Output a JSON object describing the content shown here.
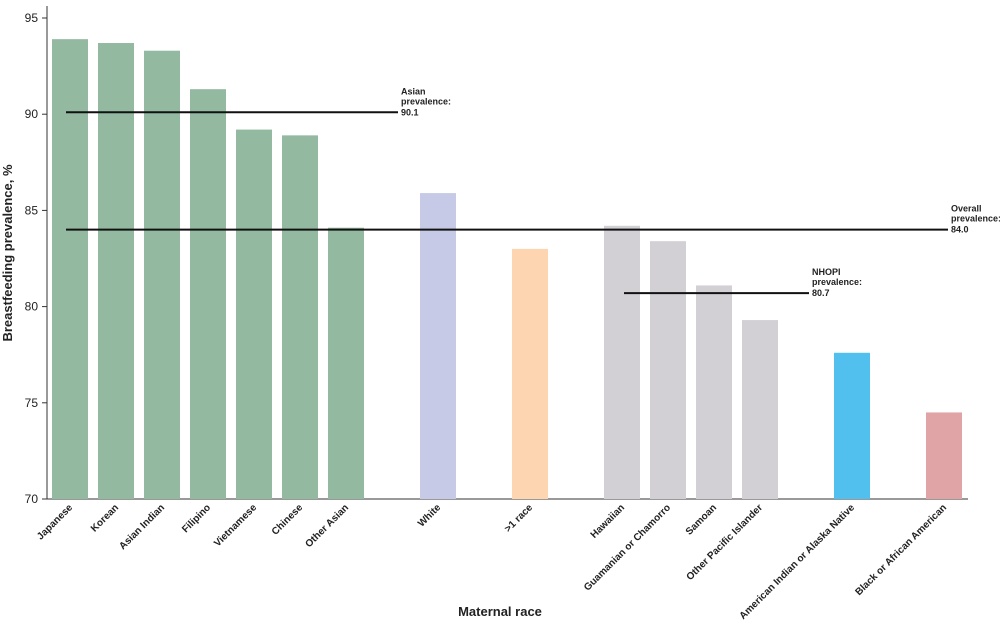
{
  "chart_data": {
    "type": "bar",
    "x_label": "Maternal race",
    "y_label": "Breastfeeding prevalence, %",
    "categories": [
      "Japanese",
      "Korean",
      "Asian Indian",
      "Filipino",
      "Vietnamese",
      "Chinese",
      "Other Asian",
      null,
      "White",
      null,
      ">1 race",
      null,
      "Hawaiian",
      "Guamanian or Chamorro",
      "Samoan",
      "Other Pacific Islander",
      null,
      "American Indian or Alaska Native",
      null,
      "Black or African American"
    ],
    "values": [
      93.9,
      93.7,
      93.3,
      91.3,
      89.2,
      88.9,
      84.1,
      null,
      85.9,
      null,
      83.0,
      null,
      84.2,
      83.4,
      81.1,
      79.3,
      null,
      77.6,
      null,
      74.5
    ],
    "colors": [
      "#93b9a1",
      "#93b9a1",
      "#93b9a1",
      "#93b9a1",
      "#93b9a1",
      "#93b9a1",
      "#93b9a1",
      null,
      "#c6cae7",
      null,
      "#fdd5b0",
      null,
      "#d2d0d5",
      "#d2d0d5",
      "#d2d0d5",
      "#d2d0d5",
      null,
      "#52c0ee",
      null,
      "#e0a4a7"
    ],
    "ylim": [
      70,
      95
    ],
    "yticks": [
      70,
      75,
      80,
      85,
      90,
      95
    ],
    "reference_lines": [
      {
        "label": "Asian prevalence:",
        "value": 90.1,
        "value_label": "90.1"
      },
      {
        "label": "Overall prevalence:",
        "value": 84,
        "value_label": "84.0"
      },
      {
        "label": "NHOPI prevalence:",
        "value": 80.7,
        "value_label": "80.7"
      }
    ]
  }
}
